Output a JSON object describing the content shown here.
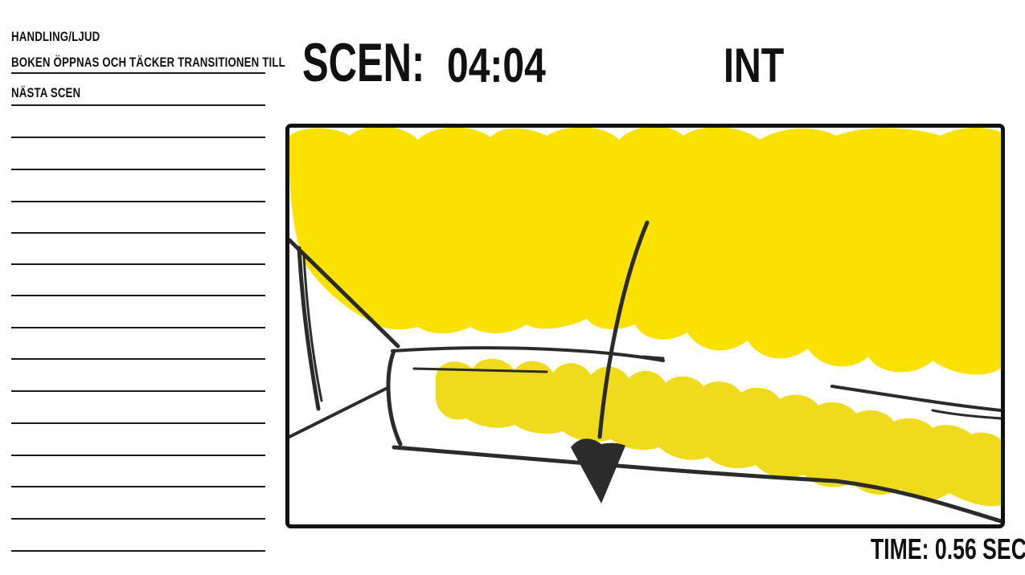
{
  "notes": {
    "heading": "HANDLING/LJUD",
    "lines": [
      "BOKEN ÖPPNAS OCH TÄCKER TRANSITIONEN TILL",
      "NÄSTA SCEN"
    ]
  },
  "header": {
    "scene_label": "SCEN:",
    "scene_number": "04:04",
    "location": "INT"
  },
  "footer": {
    "time_label": "TIME: 0.56 SEC"
  },
  "colors": {
    "highlight_yellow": "#FBE100",
    "highlight_yellow_2": "#F0DA1C",
    "ink": "#2b2b2b"
  }
}
